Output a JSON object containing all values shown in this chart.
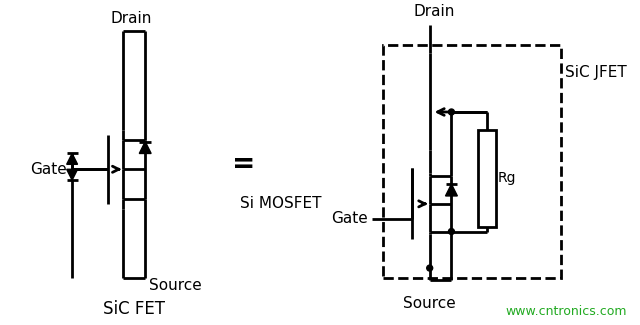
{
  "bg_color": "#ffffff",
  "line_color": "#000000",
  "text_color": "#000000",
  "website_color": "#22aa22",
  "lw": 2.0,
  "fig_width": 6.4,
  "fig_height": 3.25,
  "dpi": 100,
  "labels": {
    "drain_left": "Drain",
    "gate_left": "Gate",
    "source_left": "Source",
    "sic_fet": "SiC FET",
    "equals": "=",
    "si_mosfet": "Si MOSFET",
    "drain_right": "Drain",
    "gate_right": "Gate",
    "source_right": "Source",
    "sic_jfet": "SiC JFET",
    "rg": "Rg",
    "website": "www.cntronics.com"
  }
}
